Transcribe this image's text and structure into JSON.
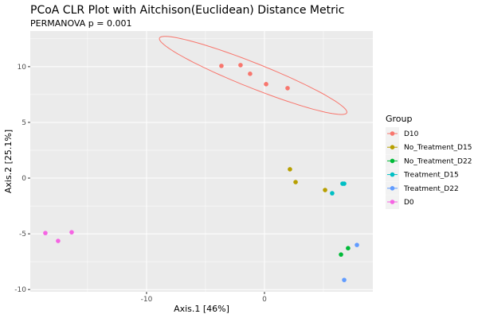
{
  "chart_data": {
    "type": "scatter",
    "title": "PCoA CLR Plot with Aitchison(Euclidean) Distance Metric",
    "subtitle": "PERMANOVA p = 0.001",
    "xlabel": "Axis.1   [46%]",
    "ylabel": "Axis.2   [25.1%]",
    "xlim": [
      -19.86,
      9.19
    ],
    "ylim": [
      -10.2,
      13.2
    ],
    "xticks": [
      -10,
      0
    ],
    "yticks": [
      -10,
      -5,
      0,
      5,
      10
    ],
    "grid": true,
    "legend": {
      "title": "Group",
      "placement": "right"
    },
    "series": [
      {
        "name": "D10",
        "color": "#F8766D",
        "ellipse": true,
        "points": [
          [
            -3.65,
            10.07
          ],
          [
            -2.03,
            10.14
          ],
          [
            -1.22,
            9.36
          ],
          [
            0.14,
            8.43
          ],
          [
            1.96,
            8.07
          ]
        ]
      },
      {
        "name": "No_Treatment_D15",
        "color": "#B79F00",
        "points": [
          [
            2.16,
            0.79
          ],
          [
            2.64,
            -0.36
          ],
          [
            5.14,
            -1.07
          ]
        ]
      },
      {
        "name": "No_Treatment_D22",
        "color": "#00BA38",
        "points": [
          [
            6.49,
            -6.86
          ],
          [
            7.09,
            -6.29
          ]
        ]
      },
      {
        "name": "Treatment_D15",
        "color": "#00BFC4",
        "points": [
          [
            6.62,
            -0.5
          ],
          [
            6.76,
            -0.5
          ],
          [
            5.74,
            -1.36
          ]
        ]
      },
      {
        "name": "Treatment_D22",
        "color": "#619CFF",
        "points": [
          [
            7.84,
            -6.0
          ],
          [
            6.76,
            -9.14
          ]
        ]
      },
      {
        "name": "D0",
        "color": "#F564E3",
        "points": [
          [
            -18.58,
            -4.93
          ],
          [
            -17.5,
            -5.64
          ],
          [
            -16.35,
            -4.86
          ]
        ]
      }
    ]
  }
}
